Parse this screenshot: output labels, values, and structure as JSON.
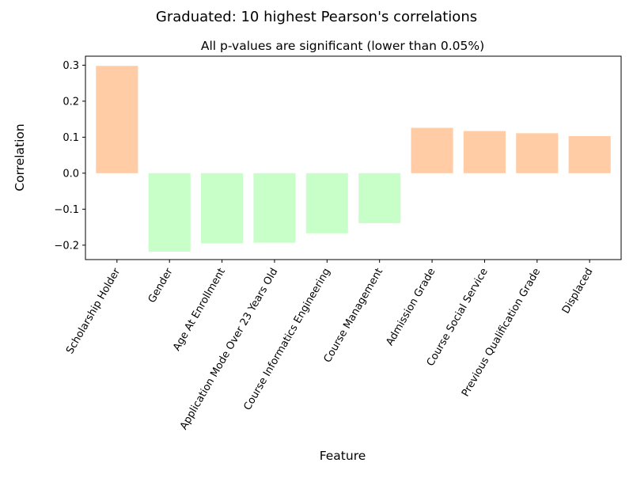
{
  "figure": {
    "suptitle": "Graduated: 10 highest Pearson's correlations"
  },
  "chart_data": {
    "type": "bar",
    "title": "All p-values are significant (lower than 0.05%)",
    "xlabel": "Feature",
    "ylabel": "Correlation",
    "categories": [
      "Scholarship Holder",
      "Gender",
      "Age At Enrollment",
      "Application Mode Over 23 Years Old",
      "Course Informatics Engineering",
      "Course Management",
      "Admission Grade",
      "Course Social Service",
      "Previous Qualification Grade",
      "Displaced"
    ],
    "values": [
      0.298,
      -0.218,
      -0.195,
      -0.193,
      -0.167,
      -0.139,
      0.126,
      0.117,
      0.111,
      0.103
    ],
    "ylim": [
      -0.24,
      0.325
    ],
    "yticks": [
      -0.2,
      -0.1,
      0.0,
      0.1,
      0.2,
      0.3
    ],
    "ytick_labels": [
      "−0.2",
      "−0.1",
      "0.0",
      "0.1",
      "0.2",
      "0.3"
    ],
    "colors": {
      "positive": "#ffcc a5",
      "negative": "#c8ffc8"
    },
    "grid": false,
    "legend": "none"
  }
}
